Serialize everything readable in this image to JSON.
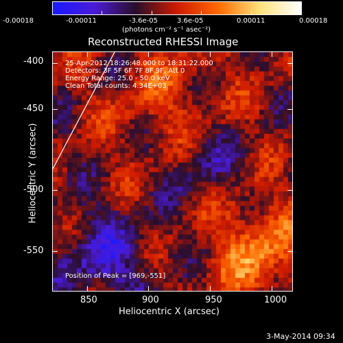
{
  "title": "Reconstructed RHESSI Image",
  "colorbar": {
    "tick_labels": [
      "-0.00018",
      "-0.00011",
      "-3.6e-05",
      "3.6e-05",
      "0.00011",
      "0.00018"
    ],
    "units": "(photons cm⁻² s⁻¹ asec⁻²)",
    "colors": [
      "#1a1aff",
      "#4b1bd6",
      "#2a0e2a",
      "#cf1a00",
      "#ff6a00",
      "#ffe27a",
      "#ffffff"
    ]
  },
  "annotations": {
    "time_range": "25-Apr-2012 18:26:48.000 to 18:31:22.000",
    "detectors": "Detectors: 3F 5F 6F 7F 8F 9F, Att 0",
    "energy_range": "Energy Range: 25.0 - 50.0 keV",
    "clean": "Clean    Total counts: 4.34E+03",
    "peak": "Position of Peak = [969,-551]"
  },
  "axes": {
    "xlabel": "Heliocentric X (arcsec)",
    "ylabel": "Heliocentric Y (arcsec)",
    "xticks": [
      "850",
      "900",
      "950",
      "1000"
    ],
    "yticks": [
      "-400",
      "-450",
      "-500",
      "-550"
    ]
  },
  "footer": {
    "date": "3-May-2014 09:34"
  }
}
